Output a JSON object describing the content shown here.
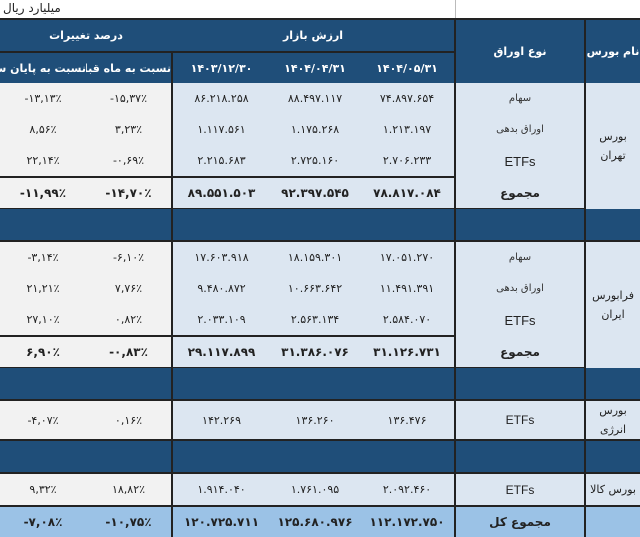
{
  "title": "میلیارد ریال",
  "header": {
    "exchange": "نام بورس",
    "type": "نوع اوراق",
    "market_value": "ارزش بازار",
    "change_pct": "درصد تغییرات",
    "dates": [
      "۱۴۰۴/۰۵/۳۱",
      "۱۴۰۴/۰۴/۳۱",
      "۱۴۰۳/۱۲/۳۰"
    ],
    "vs_prev_month": "نسبت به ماه قبل",
    "vs_prev_year_end": "نسبت به پایان سال قبل"
  },
  "groups": [
    {
      "exchange": "بورس تهران",
      "rows": [
        {
          "type": "سهام",
          "v1": "۷۴.۸۹۷.۶۵۴",
          "v2": "۸۸.۴۹۷.۱۱۷",
          "v3": "۸۶.۲۱۸.۲۵۸",
          "m": "-۱۵,۳۷٪",
          "y": "-۱۳,۱۳٪"
        },
        {
          "type": "اوراق بدهی",
          "v1": "۱.۲۱۳.۱۹۷",
          "v2": "۱.۱۷۵.۲۶۸",
          "v3": "۱.۱۱۷.۵۶۱",
          "m": "۳,۲۳٪",
          "y": "۸,۵۶٪"
        },
        {
          "type": "ETFs",
          "v1": "۲.۷۰۶.۲۳۳",
          "v2": "۲.۷۲۵.۱۶۰",
          "v3": "۲.۲۱۵.۶۸۳",
          "m": "-۰,۶۹٪",
          "y": "۲۲,۱۴٪"
        }
      ],
      "total": {
        "type": "مجموع",
        "v1": "۷۸.۸۱۷.۰۸۴",
        "v2": "۹۲.۳۹۷.۵۴۵",
        "v3": "۸۹.۵۵۱.۵۰۳",
        "m": "-۱۴,۷۰٪",
        "y": "-۱۱,۹۹٪"
      }
    },
    {
      "exchange": "فرابورس ایران",
      "rows": [
        {
          "type": "سهام",
          "v1": "۱۷.۰۵۱.۲۷۰",
          "v2": "۱۸.۱۵۹.۳۰۱",
          "v3": "۱۷.۶۰۳.۹۱۸",
          "m": "-۶,۱۰٪",
          "y": "-۳,۱۴٪"
        },
        {
          "type": "اوراق بدهی",
          "v1": "۱۱.۴۹۱.۳۹۱",
          "v2": "۱۰.۶۶۳.۶۴۲",
          "v3": "۹.۴۸۰.۸۷۲",
          "m": "۷,۷۶٪",
          "y": "۲۱,۲۱٪"
        },
        {
          "type": "ETFs",
          "v1": "۲.۵۸۴.۰۷۰",
          "v2": "۲.۵۶۳.۱۳۴",
          "v3": "۲.۰۳۳.۱۰۹",
          "m": "۰,۸۲٪",
          "y": "۲۷,۱۰٪"
        }
      ],
      "total": {
        "type": "مجموع",
        "v1": "۳۱.۱۲۶.۷۳۱",
        "v2": "۳۱.۳۸۶.۰۷۶",
        "v3": "۲۹.۱۱۷.۸۹۹",
        "m": "-۰,۸۳٪",
        "y": "۶,۹۰٪"
      }
    },
    {
      "exchange": "بورس انرژی",
      "rows": [
        {
          "type": "ETFs",
          "v1": "۱۳۶.۴۷۶",
          "v2": "۱۳۶.۲۶۰",
          "v3": "۱۴۲.۲۶۹",
          "m": "۰,۱۶٪",
          "y": "-۴,۰۷٪"
        }
      ]
    },
    {
      "exchange": "بورس کالا",
      "rows": [
        {
          "type": "ETFs",
          "v1": "۲.۰۹۲.۴۶۰",
          "v2": "۱.۷۶۱.۰۹۵",
          "v3": "۱.۹۱۴.۰۴۰",
          "m": "۱۸,۸۲٪",
          "y": "۹,۳۲٪"
        }
      ]
    }
  ],
  "grand_total": {
    "type": "مجموع کل",
    "v1": "۱۱۲.۱۷۲.۷۵۰",
    "v2": "۱۲۵.۶۸۰.۹۷۶",
    "v3": "۱۲۰.۷۲۵.۷۱۱",
    "m": "-۱۰,۷۵٪",
    "y": "-۷,۰۸٪"
  },
  "colors": {
    "header": "#1f4e79",
    "value_cell": "#dce6f1",
    "pct_cell": "#f2f2f2",
    "grand_total": "#9bc2e6"
  }
}
